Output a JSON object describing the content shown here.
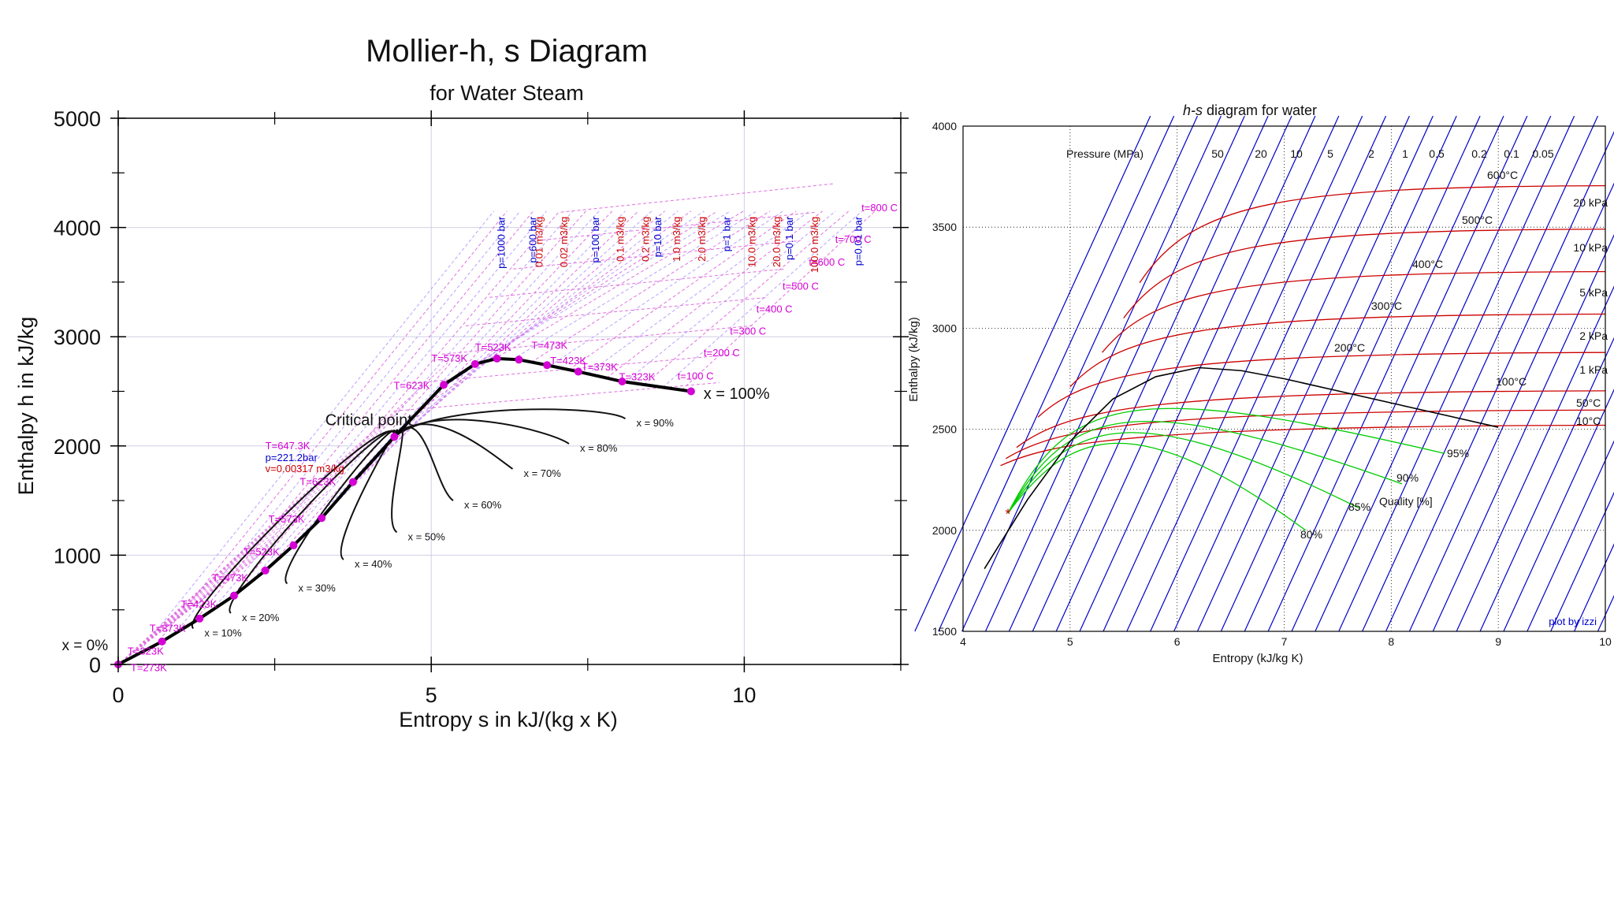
{
  "chart_data": [
    {
      "type": "line",
      "title": "Mollier-h, s Diagram",
      "subtitle": "for Water Steam",
      "xlabel": "Entropy s in kJ/(kg x K)",
      "ylabel": "Enthalpy h in kJ/kg",
      "xlim": [
        0,
        12.5
      ],
      "ylim": [
        0,
        5000
      ],
      "xticks": [
        0,
        5,
        10
      ],
      "yticks": [
        0,
        1000,
        2000,
        3000,
        4000,
        5000
      ],
      "grid": true,
      "saturation_curve": {
        "name": "saturation line",
        "x": [
          0,
          0.7,
          1.3,
          1.85,
          2.35,
          2.8,
          3.25,
          3.75,
          4.41,
          5.2,
          5.7,
          6.05,
          6.4,
          6.85,
          7.35,
          8.05,
          9.15
        ],
        "y": [
          0,
          210,
          420,
          630,
          860,
          1090,
          1340,
          1670,
          2084,
          2560,
          2750,
          2800,
          2790,
          2740,
          2680,
          2590,
          2500
        ]
      },
      "critical_point": {
        "label": "Critical point",
        "s": 4.41,
        "h": 2084,
        "T_label": "T=647.3K",
        "p_label": "p=221.2bar",
        "v_label": "v=0.00317 m3/kg"
      },
      "quality_lines": [
        {
          "label": "x = 10%",
          "s_end": 1.2,
          "h_end": 330
        },
        {
          "label": "x = 20%",
          "s_end": 1.8,
          "h_end": 470
        },
        {
          "label": "x = 30%",
          "s_end": 2.7,
          "h_end": 740
        },
        {
          "label": "x = 40%",
          "s_end": 3.6,
          "h_end": 960
        },
        {
          "label": "x = 50%",
          "s_end": 4.45,
          "h_end": 1210
        },
        {
          "label": "x = 60%",
          "s_end": 5.35,
          "h_end": 1500
        },
        {
          "label": "x = 70%",
          "s_end": 6.3,
          "h_end": 1790
        },
        {
          "label": "x = 80%",
          "s_end": 7.2,
          "h_end": 2020
        },
        {
          "label": "x = 90%",
          "s_end": 8.1,
          "h_end": 2250
        }
      ],
      "quality_end_labels": {
        "x0": "x = 0%",
        "x100": "x = 100%"
      },
      "temperature_labels": [
        "T=273K",
        "T=323K",
        "T=373K",
        "T=423K",
        "T=473K",
        "T=523K",
        "T=573K",
        "T=623K",
        "T=623K",
        "T=573K",
        "T=523K",
        "T=473K",
        "T=423K",
        "T=373K",
        "T=323K"
      ],
      "pressure_labels": [
        "p=1000 bar",
        "p=600 bar",
        "p=100 bar",
        "p=10 bar",
        "p=1 bar",
        "p=0.1 bar",
        "p=0.01 bar"
      ],
      "volume_labels": [
        "0.01 m3/kg",
        "0.02 m3/kg",
        "0.1 m3/kg",
        "0.2 m3/kg",
        "1.0 m3/kg",
        "2.0 m3/kg",
        "10.0 m3/kg",
        "20.0 m3/kg",
        "100.0 m3/kg"
      ],
      "isotherm_labels": [
        "t=800 C",
        "t=700 C",
        "t=600 C",
        "t=500 C",
        "t=400 C",
        "t=300 C",
        "t=200 C",
        "t=100 C"
      ]
    },
    {
      "type": "line",
      "title": "h-s diagram for water",
      "title_italic": "h-s",
      "title_rest": " diagram for water",
      "xlabel": "Entropy (kJ/kg K)",
      "ylabel": "Enthalpy (kJ/kg)",
      "xlim": [
        4,
        10
      ],
      "ylim": [
        1500,
        4000
      ],
      "xticks": [
        4,
        5,
        6,
        7,
        8,
        9,
        10
      ],
      "yticks": [
        1500,
        2000,
        2500,
        3000,
        3500,
        4000
      ],
      "grid": true,
      "pressure_header": "Pressure (MPa)",
      "pressure_values": [
        "50",
        "20",
        "10",
        "5",
        "2",
        "1",
        "0.5",
        "0.2",
        "0.1",
        "0.05"
      ],
      "isobar_labels": [
        "20 kPa",
        "10 kPa",
        "5 kPa",
        "2 kPa",
        "1 kPa"
      ],
      "isotherms": [
        {
          "label": "600°C",
          "h_right": 3705
        },
        {
          "label": "500°C",
          "h_right": 3490
        },
        {
          "label": "400°C",
          "h_right": 3280
        },
        {
          "label": "300°C",
          "h_right": 3070
        },
        {
          "label": "200°C",
          "h_right": 2880
        },
        {
          "label": "100°C",
          "h_right": 2690
        },
        {
          "label": "50°C",
          "h_right": 2595
        },
        {
          "label": "10°C",
          "h_right": 2520
        }
      ],
      "saturation_curve": {
        "x": [
          4.2,
          4.6,
          5.0,
          5.4,
          5.8,
          6.2,
          6.6,
          7.0,
          7.5,
          8.0,
          8.5,
          9.0
        ],
        "y": [
          1810,
          2150,
          2440,
          2650,
          2760,
          2805,
          2790,
          2750,
          2690,
          2630,
          2570,
          2510
        ]
      },
      "quality_lines": [
        {
          "label": "80%",
          "s_end": 7.2,
          "h_end": 2000
        },
        {
          "label": "85%",
          "s_end": 7.7,
          "h_end": 2110
        },
        {
          "label": "90%",
          "s_end": 8.1,
          "h_end": 2230
        },
        {
          "label": "95%",
          "s_end": 8.5,
          "h_end": 2380
        }
      ],
      "quality_header": "Quality [%]",
      "credit": "plot by izzi"
    }
  ],
  "colors": {
    "blue": "#0000cc",
    "red": "#cc0000",
    "green": "#00cc00",
    "magenta": "#d400d4",
    "pink": "#e070e0",
    "grid": "#cccccc"
  }
}
